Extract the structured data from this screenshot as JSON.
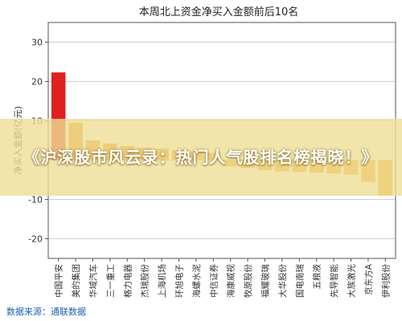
{
  "chart_data": {
    "type": "bar",
    "title": "本周北上资金净买入金额前后10名",
    "ylabel": "净买入金额(亿元)",
    "xlabel": "",
    "ylim": [
      -25,
      35
    ],
    "yticks": [
      -20,
      -10,
      0,
      10,
      20,
      30
    ],
    "grid": true,
    "categories": [
      "中国平安",
      "美的集团",
      "华域汽车",
      "三一重工",
      "格力电器",
      "杰瑞股份",
      "上海机场",
      "环旭电子",
      "海螺水泥",
      "中信证券",
      "海康威视",
      "牧原股份",
      "福耀玻璃",
      "大华股份",
      "国电南瑞",
      "五粮液",
      "先导智能",
      "大族激光",
      "京东方A",
      "伊利股份"
    ],
    "values": [
      22.3,
      9.5,
      5.0,
      4.2,
      3.6,
      3.1,
      2.9,
      2.5,
      2.2,
      1.9,
      -1.6,
      -2.0,
      -2.6,
      -2.9,
      -3.0,
      -3.2,
      -3.4,
      -3.7,
      -5.5,
      -9.0
    ],
    "colors": {
      "top": "#e02020",
      "positive": "#e88a1a",
      "negative": "#f0a020"
    }
  },
  "banner": {
    "text": "《沪深股市风云录：热门人气股排名榜揭晓！》"
  },
  "source": {
    "text": "数据来源：通联数据"
  }
}
